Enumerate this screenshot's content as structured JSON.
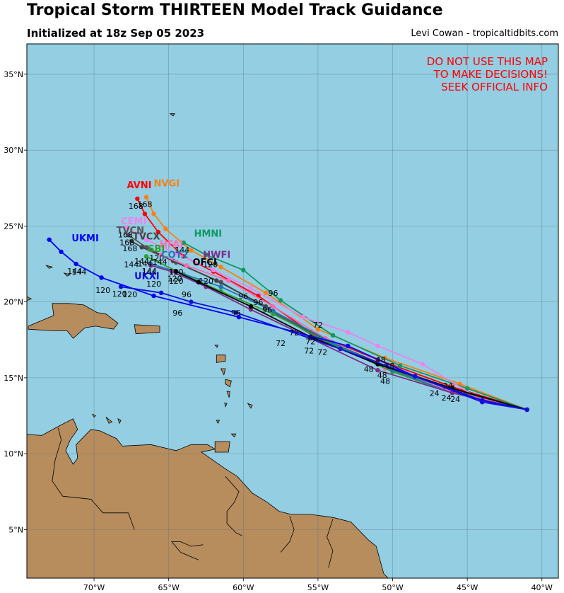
{
  "header": {
    "title": "Tropical Storm THIRTEEN Model Track Guidance",
    "subtitle": "Initialized at 18z Sep 05 2023",
    "credit": "Levi Cowan - tropicaltidbits.com"
  },
  "warning": [
    "DO NOT USE THIS MAP",
    "TO MAKE DECISIONS!",
    "SEEK OFFICIAL INFO"
  ],
  "axes": {
    "lon_ticks": [
      {
        "lon": -70,
        "label": "70°W"
      },
      {
        "lon": -65,
        "label": "65°W"
      },
      {
        "lon": -60,
        "label": "60°W"
      },
      {
        "lon": -55,
        "label": "55°W"
      },
      {
        "lon": -50,
        "label": "50°W"
      },
      {
        "lon": -45,
        "label": "45°W"
      },
      {
        "lon": -40,
        "label": "40°W"
      }
    ],
    "lat_ticks": [
      {
        "lat": 35,
        "label": "35°N"
      },
      {
        "lat": 30,
        "label": "30°N"
      },
      {
        "lat": 25,
        "label": "25°N"
      },
      {
        "lat": 20,
        "label": "20°N"
      },
      {
        "lat": 15,
        "label": "15°N"
      },
      {
        "lat": 10,
        "label": "10°N"
      },
      {
        "lat": 5,
        "label": "5°N"
      }
    ],
    "lon_range": [
      -74.5,
      -38.9
    ],
    "lat_range": [
      1.8,
      37.0
    ]
  },
  "colors": {
    "ocean": "#93cee3",
    "land": "#b78d5e",
    "warning": "#ff0000",
    "grid": "#5a6f7a"
  },
  "models": [
    {
      "name": "AVNI",
      "color": "#ff0000",
      "track": [
        [
          -41.0,
          12.9
        ],
        [
          -46.0,
          14.4
        ],
        [
          -51.0,
          16.2
        ],
        [
          -55.5,
          18.0
        ],
        [
          -59.0,
          20.4
        ],
        [
          -62.0,
          22.0
        ],
        [
          -64.0,
          23.0
        ],
        [
          -65.7,
          24.6
        ],
        [
          -66.6,
          25.8
        ],
        [
          -67.1,
          26.8
        ]
      ],
      "labels": [
        {
          "t": "168",
          "at": 9
        }
      ]
    },
    {
      "name": "NVGI",
      "color": "#ff7f0e",
      "track": [
        [
          -41.0,
          12.9
        ],
        [
          -45.5,
          14.6
        ],
        [
          -50.5,
          16.3
        ],
        [
          -55.0,
          18.2
        ],
        [
          -58.5,
          20.6
        ],
        [
          -61.5,
          22.3
        ],
        [
          -63.5,
          23.4
        ],
        [
          -65.2,
          24.8
        ],
        [
          -66.0,
          25.8
        ],
        [
          -66.5,
          26.9
        ]
      ],
      "labels": [
        {
          "t": "168",
          "at": 9
        }
      ]
    },
    {
      "name": "HMNI",
      "color": "#0f9960",
      "track": [
        [
          -41.0,
          12.9
        ],
        [
          -45.0,
          14.3
        ],
        [
          -49.5,
          15.8
        ],
        [
          -54.0,
          17.8
        ],
        [
          -57.5,
          20.1
        ],
        [
          -60.0,
          22.1
        ],
        [
          -62.5,
          23.1
        ],
        [
          -64.0,
          23.9
        ]
      ],
      "labels": [
        {
          "t": "144",
          "at": 7
        }
      ]
    },
    {
      "name": "CEMI",
      "color": "#ee82ee",
      "track": [
        [
          -41.0,
          12.9
        ],
        [
          -44.5,
          13.8
        ],
        [
          -48.0,
          15.9
        ],
        [
          -51.0,
          17.1
        ],
        [
          -53.0,
          18.0
        ],
        [
          -56.0,
          19.0
        ],
        [
          -59.5,
          20.9
        ],
        [
          -62.0,
          22.1
        ],
        [
          -64.5,
          23.2
        ],
        [
          -66.5,
          24.1
        ],
        [
          -67.8,
          24.9
        ]
      ],
      "labels": [
        {
          "t": "168",
          "at": 10
        }
      ]
    },
    {
      "name": "TVCN",
      "color": "#555555",
      "track": [
        [
          -41.0,
          12.9
        ],
        [
          -46.0,
          14.2
        ],
        [
          -50.5,
          15.7
        ],
        [
          -55.0,
          17.6
        ],
        [
          -58.5,
          19.6
        ],
        [
          -61.5,
          21.3
        ],
        [
          -64.5,
          22.6
        ],
        [
          -66.5,
          23.6
        ],
        [
          -67.7,
          24.4
        ]
      ],
      "labels": [
        {
          "t": "168",
          "at": 8
        }
      ]
    },
    {
      "name": "TVCX",
      "color": "#444444",
      "track": [
        [
          -41.0,
          12.9
        ],
        [
          -46.0,
          14.3
        ],
        [
          -50.5,
          15.8
        ],
        [
          -55.0,
          17.7
        ],
        [
          -58.5,
          19.7
        ],
        [
          -61.8,
          21.4
        ],
        [
          -64.7,
          22.7
        ],
        [
          -66.8,
          23.6
        ],
        [
          -67.5,
          24.0
        ]
      ],
      "labels": [
        {
          "t": "168",
          "at": 8
        }
      ]
    },
    {
      "name": "HFAI",
      "color": "#ff69b4",
      "track": [
        [
          -41.0,
          12.9
        ],
        [
          -46.0,
          14.1
        ],
        [
          -50.5,
          15.6
        ],
        [
          -54.5,
          17.6
        ],
        [
          -58.0,
          19.7
        ],
        [
          -61.0,
          21.4
        ],
        [
          -63.8,
          22.4
        ],
        [
          -65.5,
          23.1
        ]
      ],
      "labels": [
        {
          "t": "144",
          "at": 7
        }
      ]
    },
    {
      "name": "SBI",
      "color": "#2ca02c",
      "track": [
        [
          -41.0,
          12.9
        ],
        [
          -46.0,
          14.0
        ],
        [
          -50.0,
          15.4
        ],
        [
          -54.0,
          17.2
        ],
        [
          -58.0,
          19.2
        ],
        [
          -61.5,
          20.7
        ],
        [
          -64.0,
          21.8
        ],
        [
          -66.5,
          23.0
        ]
      ],
      "labels": [
        {
          "t": "144",
          "at": 7
        }
      ]
    },
    {
      "name": "COT2",
      "color": "#1f77b4",
      "track": [
        [
          -41.0,
          12.9
        ],
        [
          -46.0,
          14.0
        ],
        [
          -50.0,
          15.5
        ],
        [
          -54.0,
          17.3
        ],
        [
          -58.0,
          19.4
        ],
        [
          -61.5,
          21.0
        ],
        [
          -64.5,
          22.0
        ],
        [
          -66.2,
          22.5
        ]
      ],
      "labels": [
        {
          "t": "144",
          "at": 7
        }
      ]
    },
    {
      "name": "HWFI",
      "color": "#7b2d8b",
      "track": [
        [
          -41.0,
          12.9
        ],
        [
          -46.0,
          14.0
        ],
        [
          -51.0,
          15.5
        ],
        [
          -55.5,
          17.6
        ],
        [
          -59.5,
          19.5
        ],
        [
          -62.5,
          21.0
        ],
        [
          -64.8,
          22.0
        ],
        [
          -66.2,
          22.4
        ]
      ],
      "labels": [
        {
          "t": "144",
          "at": 7
        }
      ]
    },
    {
      "name": "OFCI",
      "color": "#000000",
      "track": [
        [
          -41.0,
          12.9
        ],
        [
          -46.0,
          14.3
        ],
        [
          -51.0,
          15.9
        ],
        [
          -55.5,
          17.7
        ],
        [
          -59.5,
          19.7
        ],
        [
          -63.0,
          21.3
        ],
        [
          -64.5,
          22.0
        ]
      ],
      "labels": [
        {
          "t": "120",
          "at": 6
        }
      ]
    },
    {
      "name": "UKMI",
      "color": "#0000ff",
      "track": [
        [
          -41.0,
          12.9
        ],
        [
          -44.0,
          13.5
        ],
        [
          -48.5,
          15.1
        ],
        [
          -53.0,
          17.1
        ],
        [
          -60.3,
          19.0
        ],
        [
          -66.0,
          20.4
        ],
        [
          -69.5,
          21.6
        ],
        [
          -71.2,
          22.5
        ],
        [
          -72.2,
          23.3
        ],
        [
          -73.0,
          24.1
        ]
      ],
      "labels": [
        {
          "t": "144",
          "at": 7
        }
      ]
    },
    {
      "name": "UKXI",
      "color": "#1010dd",
      "track": [
        [
          -41.0,
          12.9
        ],
        [
          -44.0,
          13.4
        ],
        [
          -48.5,
          15.1
        ],
        [
          -53.5,
          16.9
        ],
        [
          -60.5,
          19.3
        ],
        [
          -63.5,
          20.0
        ],
        [
          -65.5,
          20.6
        ],
        [
          -68.2,
          21.0
        ]
      ],
      "labels": [
        {
          "t": "120",
          "at": 7
        }
      ]
    }
  ],
  "name_labels": [
    {
      "name": "AVNI",
      "lon": -67.8,
      "lat": 27.5
    },
    {
      "name": "NVGI",
      "lon": -66.0,
      "lat": 27.6
    },
    {
      "name": "HMNI",
      "lon": -63.3,
      "lat": 24.3
    },
    {
      "name": "CEMI",
      "lon": -68.2,
      "lat": 25.1
    },
    {
      "name": "TVCN",
      "lon": -68.5,
      "lat": 24.5
    },
    {
      "name": "TVCX",
      "lon": -67.4,
      "lat": 24.1
    },
    {
      "name": "HFAI",
      "lon": -65.6,
      "lat": 23.6
    },
    {
      "name": "SBI",
      "lon": -66.4,
      "lat": 23.3
    },
    {
      "name": "COT2",
      "lon": -65.5,
      "lat": 22.9
    },
    {
      "name": "HWFI",
      "lon": -62.7,
      "lat": 22.9
    },
    {
      "name": "OFCI",
      "lon": -63.4,
      "lat": 22.4
    },
    {
      "name": "UKMI",
      "lon": -71.5,
      "lat": 24.0
    },
    {
      "name": "UKXI",
      "lon": -67.3,
      "lat": 21.5
    }
  ],
  "hour_labels": [
    {
      "t": "120",
      "lon": -65.8,
      "lat": 22.7
    },
    {
      "t": "120",
      "lon": -62.2,
      "lat": 22.3
    },
    {
      "t": "120",
      "lon": -64.5,
      "lat": 21.8
    },
    {
      "t": "120",
      "lon": -66.0,
      "lat": 21.0
    },
    {
      "t": "120",
      "lon": -64.5,
      "lat": 21.2
    },
    {
      "t": "120",
      "lon": -62.5,
      "lat": 21.2
    },
    {
      "t": "120",
      "lon": -69.4,
      "lat": 20.6
    },
    {
      "t": "120",
      "lon": -67.6,
      "lat": 20.3
    },
    {
      "t": "144",
      "lon": -71.0,
      "lat": 21.8
    },
    {
      "t": "144",
      "lon": -67.5,
      "lat": 22.3
    },
    {
      "t": "144",
      "lon": -66.8,
      "lat": 22.5
    },
    {
      "t": "96",
      "lon": -63.8,
      "lat": 20.3
    },
    {
      "t": "96",
      "lon": -60.0,
      "lat": 20.2
    },
    {
      "t": "96",
      "lon": -59.0,
      "lat": 19.8
    },
    {
      "t": "96",
      "lon": -58.0,
      "lat": 20.4
    },
    {
      "t": "96",
      "lon": -60.5,
      "lat": 19.1
    },
    {
      "t": "96",
      "lon": -58.4,
      "lat": 19.3
    },
    {
      "t": "96",
      "lon": -64.4,
      "lat": 19.1
    },
    {
      "t": "72",
      "lon": -56.6,
      "lat": 17.8
    },
    {
      "t": "72",
      "lon": -57.5,
      "lat": 17.1
    },
    {
      "t": "72",
      "lon": -55.5,
      "lat": 17.2
    },
    {
      "t": "72",
      "lon": -55.0,
      "lat": 18.3
    },
    {
      "t": "72",
      "lon": -55.6,
      "lat": 16.6
    },
    {
      "t": "72",
      "lon": -54.7,
      "lat": 16.5
    },
    {
      "t": "48",
      "lon": -50.8,
      "lat": 16.0
    },
    {
      "t": "48",
      "lon": -51.6,
      "lat": 15.4
    },
    {
      "t": "48",
      "lon": -50.7,
      "lat": 15.0
    },
    {
      "t": "48",
      "lon": -50.5,
      "lat": 14.6
    },
    {
      "t": "48",
      "lon": -50.2,
      "lat": 15.6
    },
    {
      "t": "24",
      "lon": -46.3,
      "lat": 14.3
    },
    {
      "t": "24",
      "lon": -47.2,
      "lat": 13.8
    },
    {
      "t": "24",
      "lon": -46.4,
      "lat": 13.5
    },
    {
      "t": "24",
      "lon": -45.8,
      "lat": 13.4
    }
  ]
}
